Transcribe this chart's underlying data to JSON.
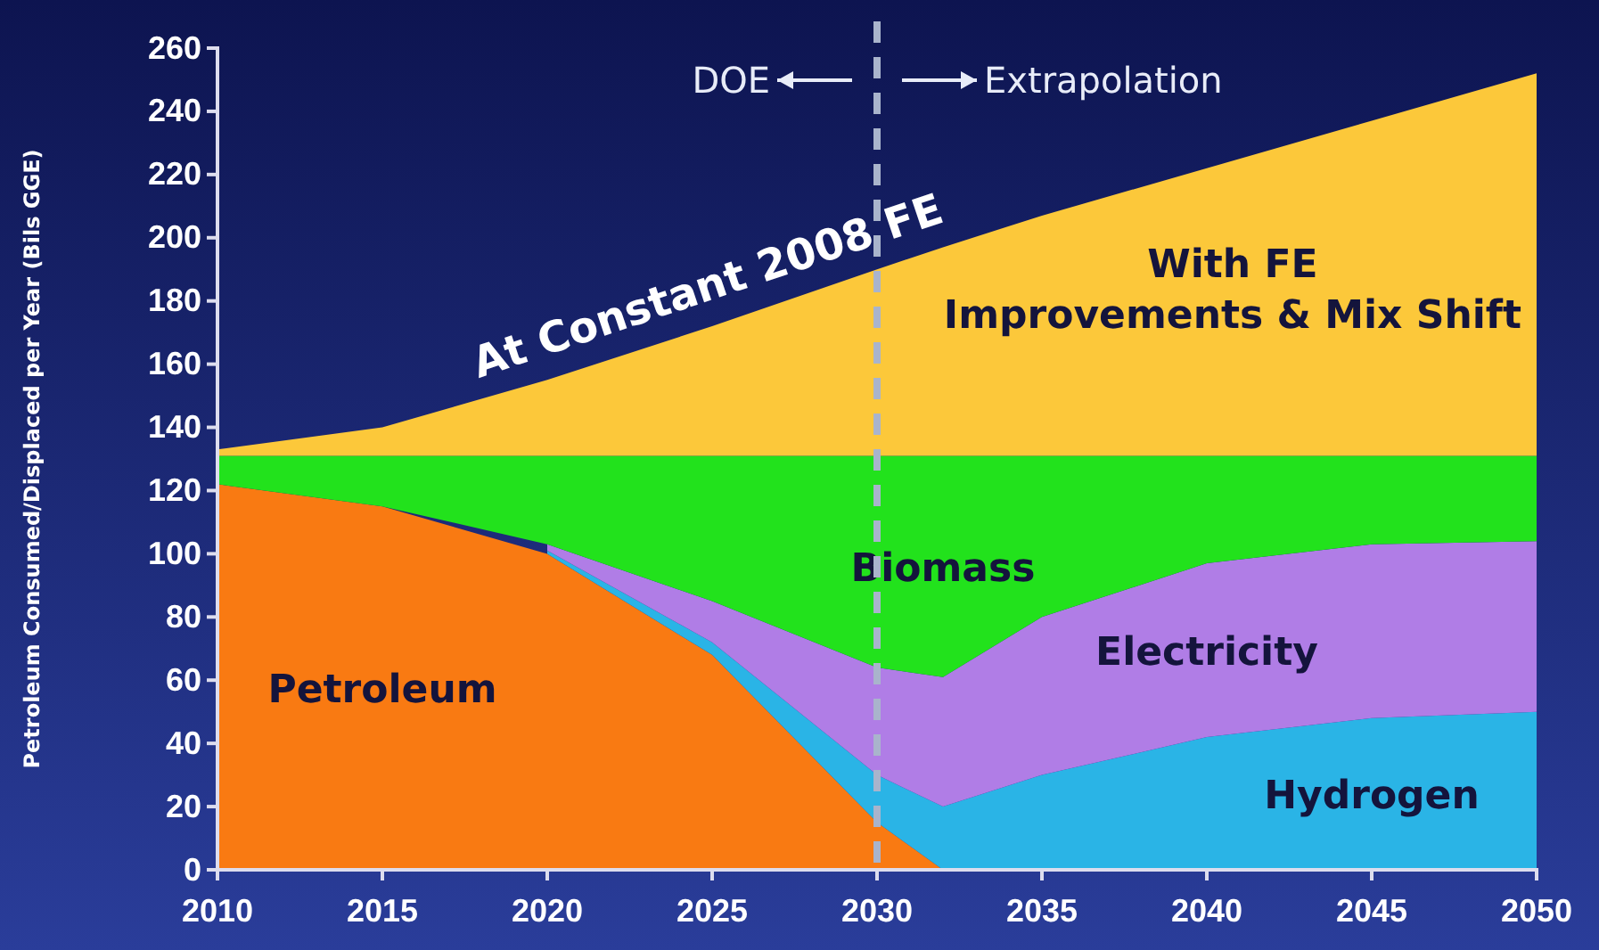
{
  "chart_data": {
    "type": "area",
    "stacked": true,
    "ylabel": "Petroleum Consumed/Displaced per Year (Bils GGE)",
    "x": [
      2010,
      2015,
      2020,
      2025,
      2030,
      2032,
      2035,
      2040,
      2045,
      2050
    ],
    "xlim": [
      2010,
      2050
    ],
    "xticks": [
      2010,
      2015,
      2020,
      2025,
      2030,
      2035,
      2040,
      2045,
      2050
    ],
    "ylim": [
      0,
      260
    ],
    "yticks": [
      0,
      20,
      40,
      60,
      80,
      100,
      120,
      140,
      160,
      180,
      200,
      220,
      240,
      260
    ],
    "grid": false,
    "series": [
      {
        "name": "Petroleum",
        "color": "#f97a12",
        "values": [
          122,
          115,
          100,
          68,
          15,
          0,
          0,
          0,
          0,
          0
        ]
      },
      {
        "name": "Hydrogen",
        "color": "#2ab4e6",
        "values": [
          null,
          null,
          1,
          4,
          15,
          20,
          30,
          42,
          48,
          50
        ]
      },
      {
        "name": "Electricity",
        "color": "#b07de6",
        "values": [
          null,
          null,
          2,
          13,
          34,
          41,
          50,
          55,
          55,
          54
        ]
      },
      {
        "name": "Biomass",
        "color": "#22e21c",
        "values": [
          9,
          16,
          28,
          46,
          67,
          70,
          51,
          34,
          28,
          27
        ]
      },
      {
        "name": "With FE Improvements & Mix Shift",
        "color": "#fcc83a",
        "values": [
          2,
          9,
          24,
          41,
          59,
          66,
          76,
          91,
          106,
          121
        ]
      }
    ],
    "ref_lines": [
      {
        "axis": "x",
        "value": 2030,
        "color": "#a9b4cc",
        "line_style": "dashed"
      }
    ],
    "annotations": [
      "At Constant 2008 FE",
      "DOE",
      "Extrapolation"
    ]
  }
}
